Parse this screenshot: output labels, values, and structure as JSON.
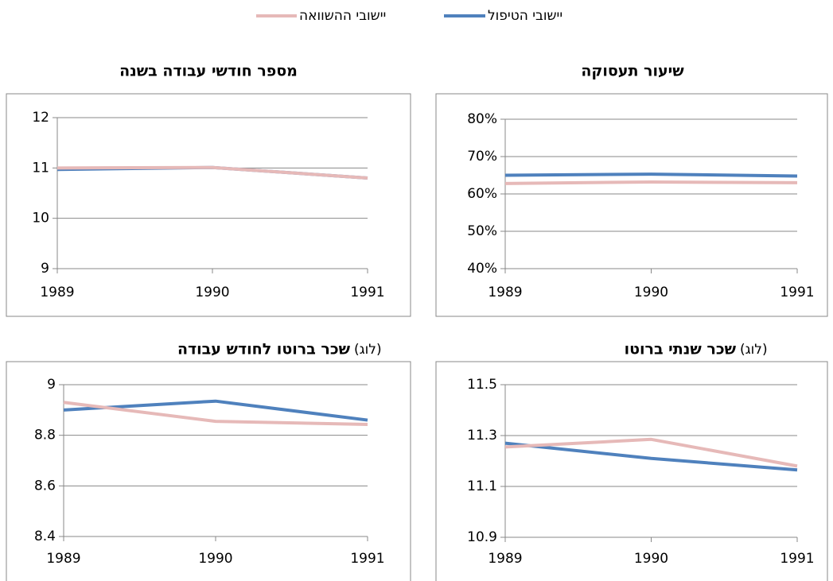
{
  "legend": {
    "items": [
      {
        "name": "יישובי הטיפול",
        "color": "#4f81bd"
      },
      {
        "name": "יישובי ההשוואה",
        "color": "#e6b9b8"
      }
    ]
  },
  "chart_data": [
    {
      "type": "line",
      "title": "מספר חודשי עבודה בשנה",
      "categories": [
        "1989",
        "1990",
        "1991"
      ],
      "series": [
        {
          "color": "#4f81bd",
          "values": [
            10.97,
            11.01,
            10.8
          ]
        },
        {
          "color": "#e6b9b8",
          "values": [
            11.0,
            11.01,
            10.8
          ]
        }
      ],
      "ylim": [
        9,
        12
      ],
      "yticks": [
        9,
        10,
        11,
        12
      ],
      "grid": true
    },
    {
      "type": "line",
      "title": "שיעור תעסוקה",
      "categories": [
        "1989",
        "1990",
        "1991"
      ],
      "series": [
        {
          "color": "#4f81bd",
          "values": [
            65,
            65.3,
            64.8
          ]
        },
        {
          "color": "#e6b9b8",
          "values": [
            62.8,
            63.2,
            63.0
          ]
        }
      ],
      "ylim": [
        40,
        80
      ],
      "yticks": [
        {
          "value": 40,
          "label": "40%"
        },
        {
          "value": 50,
          "label": "50%"
        },
        {
          "value": 60,
          "label": "60%"
        },
        {
          "value": 70,
          "label": "70%"
        },
        {
          "value": 80,
          "label": "80%"
        }
      ],
      "grid": true
    },
    {
      "type": "line",
      "title_prefix": "(לוג)",
      "title": "שכר ברוטו לחודש עבודה",
      "categories": [
        "1989",
        "1990",
        "1991"
      ],
      "series": [
        {
          "color": "#4f81bd",
          "values": [
            8.9,
            8.935,
            8.86
          ]
        },
        {
          "color": "#e6b9b8",
          "values": [
            8.93,
            8.855,
            8.843
          ]
        }
      ],
      "ylim": [
        8.4,
        9
      ],
      "yticks": [
        8.4,
        8.6,
        8.8,
        9
      ],
      "grid": true
    },
    {
      "type": "line",
      "title_prefix": "(לוג)",
      "title": "שכר שנתי ברוטו",
      "categories": [
        "1989",
        "1990",
        "1991"
      ],
      "series": [
        {
          "color": "#4f81bd",
          "values": [
            11.27,
            11.21,
            11.165
          ]
        },
        {
          "color": "#e6b9b8",
          "values": [
            11.255,
            11.285,
            11.18
          ]
        }
      ],
      "ylim": [
        10.9,
        11.5
      ],
      "yticks": [
        10.9,
        11.1,
        11.3,
        11.5
      ],
      "grid": true
    }
  ]
}
